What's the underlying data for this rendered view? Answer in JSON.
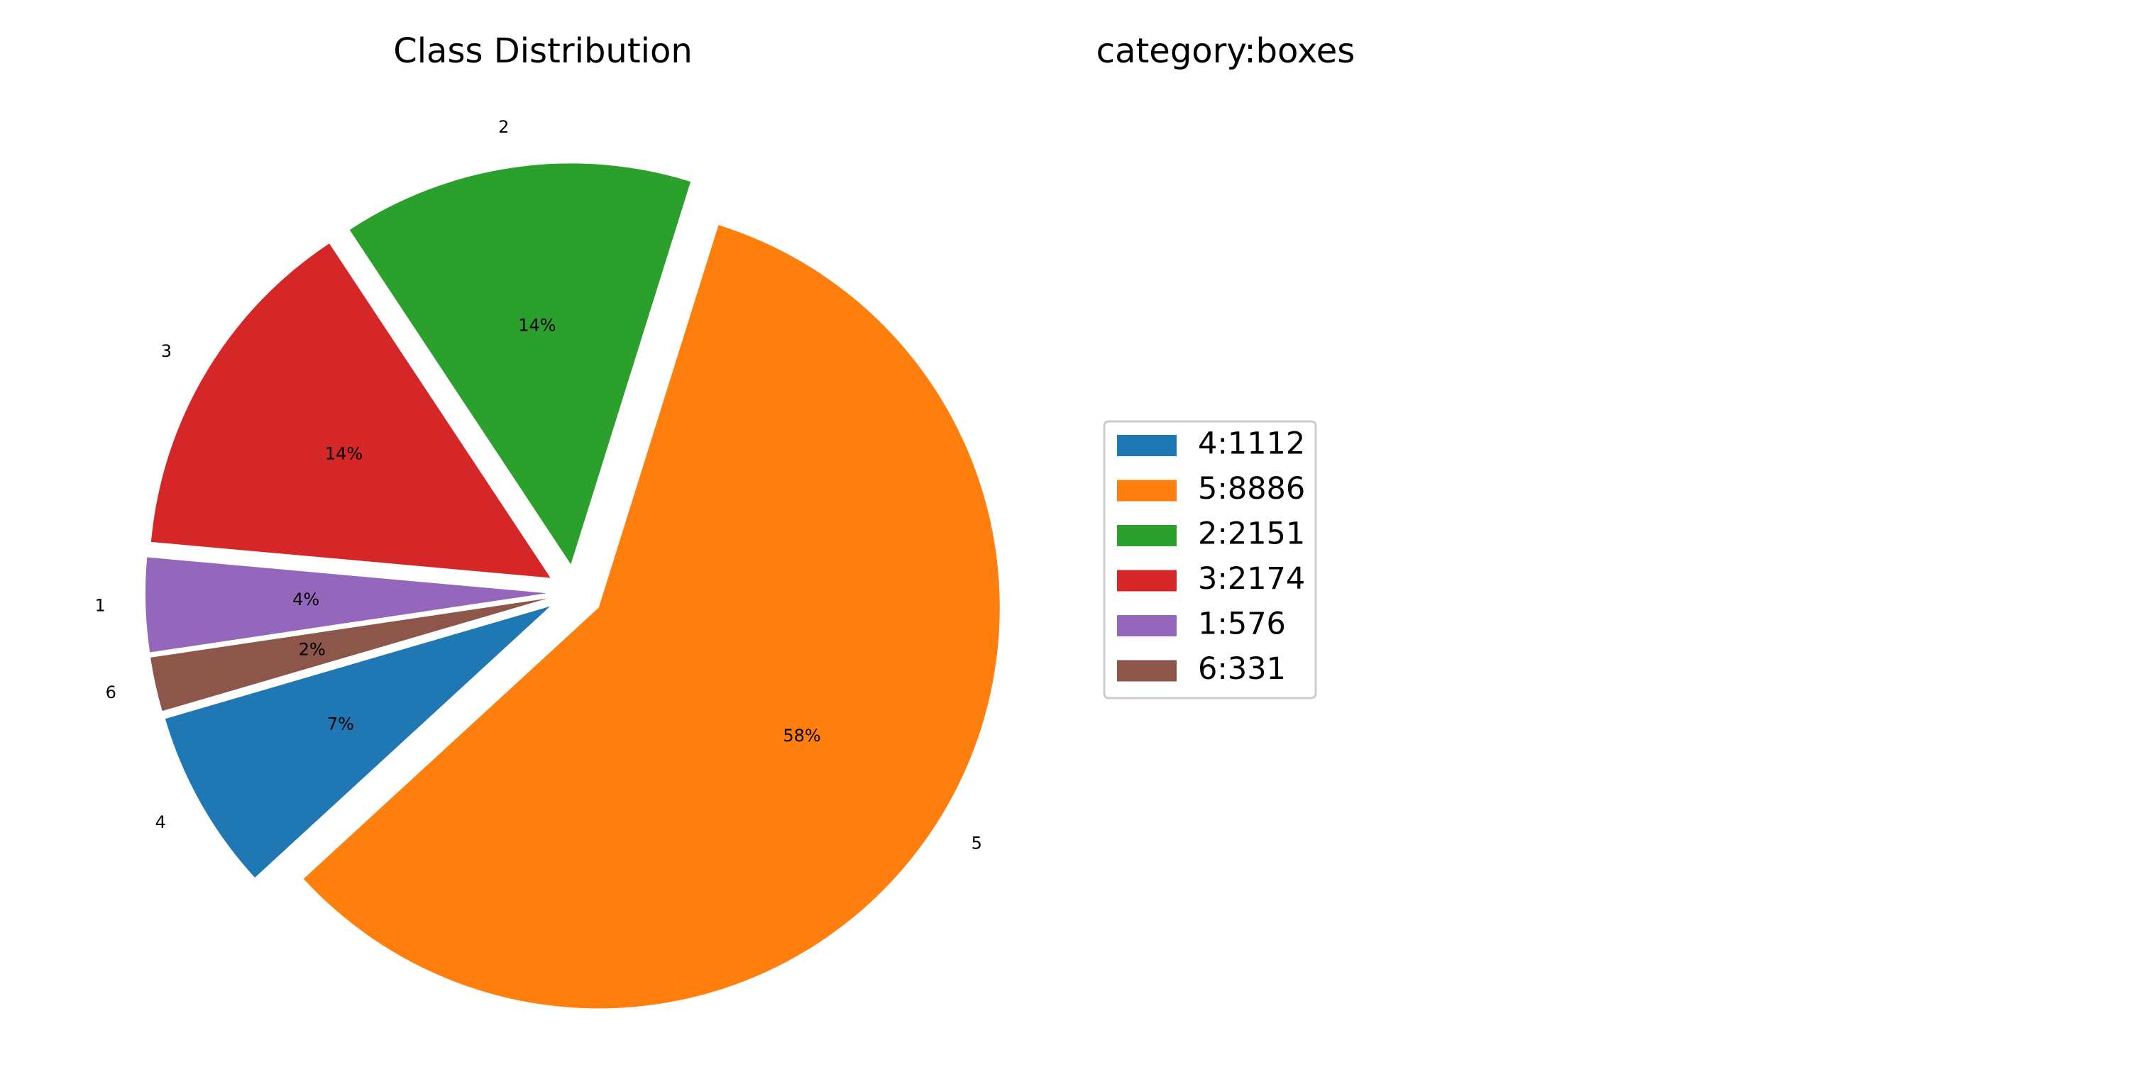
{
  "chart_data": {
    "type": "pie",
    "title": "Class Distribution",
    "subtitle": "category:boxes",
    "categories": [
      "4",
      "5",
      "2",
      "3",
      "1",
      "6"
    ],
    "values": [
      1112,
      8886,
      2151,
      2174,
      576,
      331
    ],
    "percent_labels": [
      "7%",
      "58%",
      "14%",
      "14%",
      "4%",
      "2%"
    ],
    "legend_entries": [
      "4:1112",
      "5:8886",
      "2:2151",
      "3:2174",
      "1:576",
      "6:331"
    ],
    "colors": [
      "#1f77b4",
      "#ff7f0e",
      "#2ca02c",
      "#d62728",
      "#9467bd",
      "#8c564b"
    ],
    "exploded": true,
    "legend_placement": "right"
  }
}
